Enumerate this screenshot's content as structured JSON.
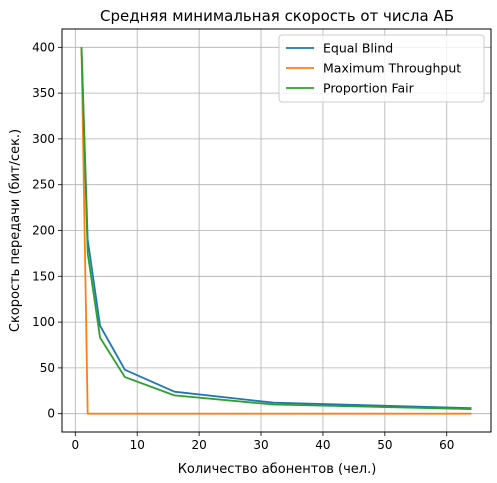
{
  "chart_data": {
    "type": "line",
    "title": "Средняя минимальная скорость от числа АБ",
    "xlabel": "Количество абонентов (чел.)",
    "ylabel": "Скорость передачи (бит/сек.)",
    "xlim": [
      -2.15,
      67.15
    ],
    "ylim": [
      -20,
      420
    ],
    "xticks": [
      0,
      10,
      20,
      30,
      40,
      50,
      60
    ],
    "yticks": [
      0,
      50,
      100,
      150,
      200,
      250,
      300,
      350,
      400
    ],
    "grid": true,
    "legend_position": "upper right",
    "series": [
      {
        "name": "Equal Blind",
        "color": "#1f77b4",
        "x": [
          1,
          2,
          4,
          8,
          16,
          32,
          64
        ],
        "y": [
          400,
          190,
          96,
          48,
          24,
          12,
          6
        ]
      },
      {
        "name": "Maximum Throughput",
        "color": "#ff7f0e",
        "x": [
          1,
          2,
          4,
          8,
          16,
          32,
          64
        ],
        "y": [
          400,
          0,
          0,
          0,
          0,
          0,
          0
        ]
      },
      {
        "name": "Proportion Fair",
        "color": "#2ca02c",
        "x": [
          1,
          2,
          4,
          8,
          16,
          32,
          64
        ],
        "y": [
          400,
          175,
          83,
          40,
          20,
          10,
          5
        ]
      }
    ]
  }
}
